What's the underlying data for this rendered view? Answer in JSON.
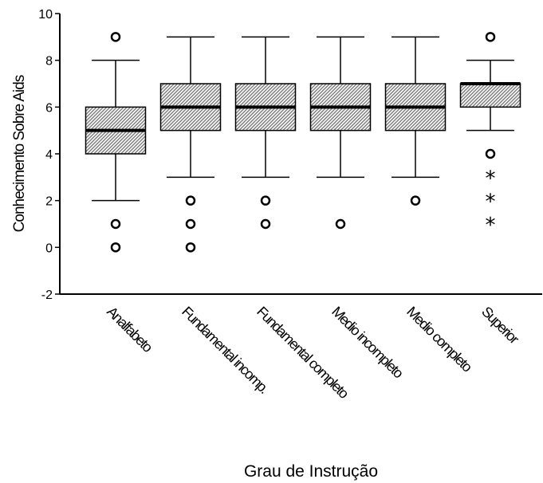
{
  "chart_data": {
    "type": "box",
    "title": "",
    "xlabel": "Grau de Instrução",
    "ylabel": "Conhecimento Sobre Aids",
    "ylim": [
      -2,
      10
    ],
    "yticks": [
      -2,
      0,
      2,
      4,
      6,
      8,
      10
    ],
    "grid": false,
    "legend": "none",
    "box_fill": "#d9d9d9",
    "categories": [
      "Analfabeto",
      "Fundamental incomp.",
      "Fundamental completo",
      "Medio incompleto",
      "Medio completo",
      "Superior"
    ],
    "boxes": [
      {
        "whisker_low": 2,
        "q1": 4,
        "median": 5,
        "q3": 6,
        "whisker_high": 8,
        "outliers": [
          9,
          1,
          0
        ],
        "extremes": []
      },
      {
        "whisker_low": 3,
        "q1": 5,
        "median": 6,
        "q3": 7,
        "whisker_high": 9,
        "outliers": [
          2,
          1,
          0
        ],
        "extremes": []
      },
      {
        "whisker_low": 3,
        "q1": 5,
        "median": 6,
        "q3": 7,
        "whisker_high": 9,
        "outliers": [
          2,
          1
        ],
        "extremes": []
      },
      {
        "whisker_low": 3,
        "q1": 5,
        "median": 6,
        "q3": 7,
        "whisker_high": 9,
        "outliers": [
          1
        ],
        "extremes": []
      },
      {
        "whisker_low": 3,
        "q1": 5,
        "median": 6,
        "q3": 7,
        "whisker_high": 9,
        "outliers": [
          2
        ],
        "extremes": []
      },
      {
        "whisker_low": 5,
        "q1": 6,
        "median": 7,
        "q3": 7,
        "whisker_high": 8,
        "outliers": [
          9,
          4
        ],
        "extremes": [
          3,
          2,
          1
        ]
      }
    ]
  }
}
